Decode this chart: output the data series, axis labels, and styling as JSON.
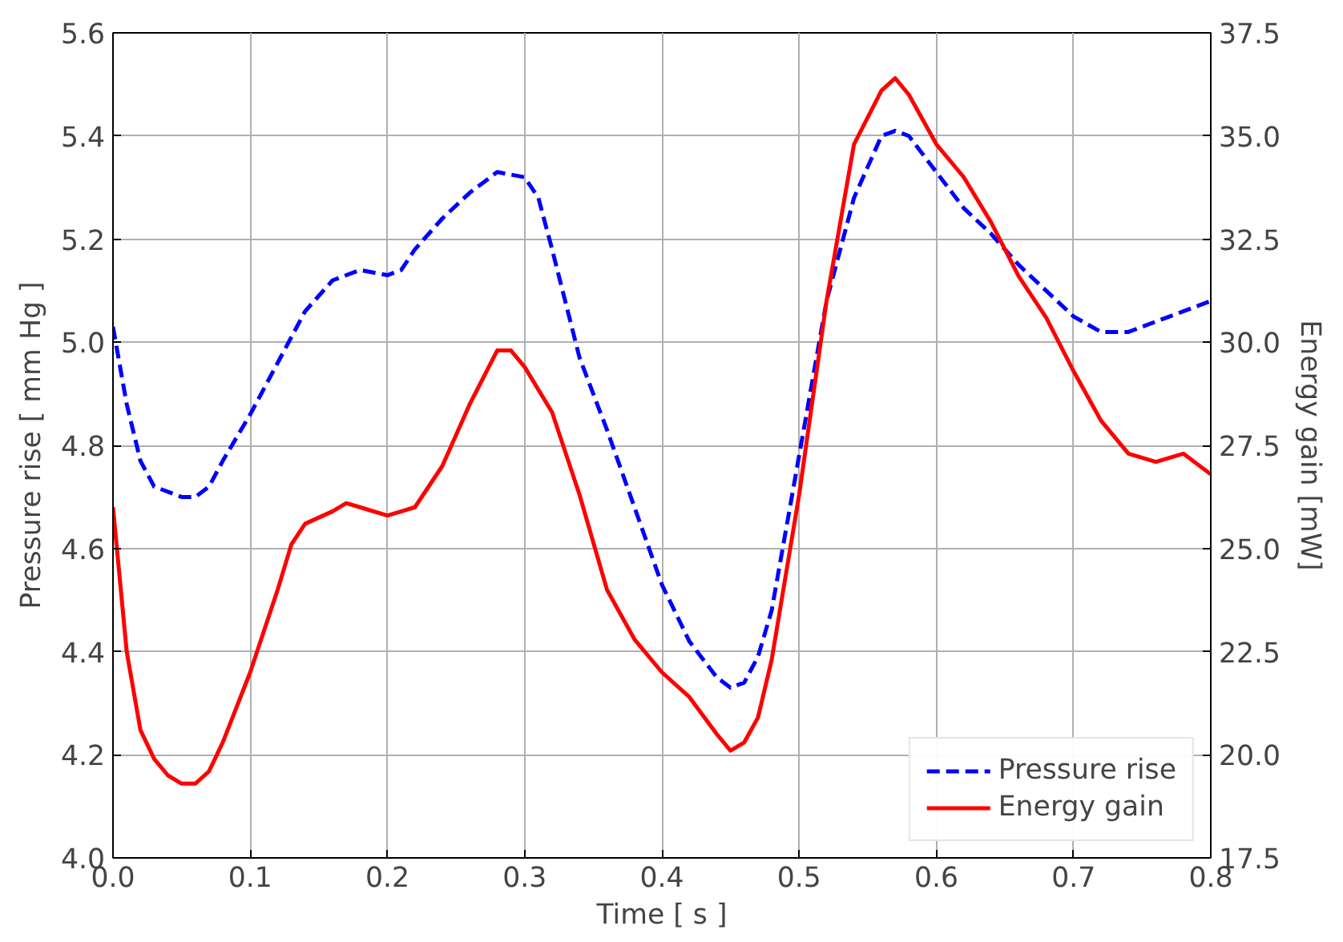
{
  "chart_data": {
    "type": "line",
    "xlabel": "Time [ s ]",
    "ylabel": "Pressure rise [ mm Hg ]",
    "y2label": "Energy gain [mW]",
    "xlim": [
      0,
      0.8
    ],
    "ylim": [
      4.0,
      5.6
    ],
    "y2lim": [
      17.5,
      37.5
    ],
    "xticks": [
      {
        "value": 0,
        "label": "0.0"
      },
      0.1,
      0.2,
      0.3,
      0.4,
      0.5,
      0.6,
      0.7,
      0.8
    ],
    "yticks": [
      {
        "value": 4,
        "label": "4.0"
      },
      4.2,
      4.4,
      4.6,
      4.8,
      {
        "value": 5,
        "label": "5.0"
      },
      5.2,
      5.4,
      5.6
    ],
    "y2ticks": [
      17.5,
      {
        "value": 20,
        "label": "20.0"
      },
      22.5,
      {
        "value": 25,
        "label": "25.0"
      },
      27.5,
      {
        "value": 30,
        "label": "30.0"
      },
      32.5,
      {
        "value": 35,
        "label": "35.0"
      },
      37.5
    ],
    "grid": true,
    "legend": "bottom right",
    "series": [
      {
        "name": "Pressure rise",
        "color": "#0000ff",
        "line_style": "dashed",
        "x": [
          0,
          0.01,
          0.02,
          0.03,
          0.05,
          0.06,
          0.07,
          0.08,
          0.1,
          0.12,
          0.14,
          0.16,
          0.18,
          0.2,
          0.21,
          0.22,
          0.24,
          0.26,
          0.28,
          0.3,
          0.31,
          0.32,
          0.34,
          0.36,
          0.38,
          0.4,
          0.42,
          0.44,
          0.45,
          0.46,
          0.47,
          0.48,
          0.5,
          0.52,
          0.54,
          0.56,
          0.57,
          0.58,
          0.6,
          0.62,
          0.64,
          0.66,
          0.68,
          0.7,
          0.72,
          0.74,
          0.76,
          0.78,
          0.8
        ],
        "values": [
          5.03,
          4.88,
          4.77,
          4.72,
          4.7,
          4.7,
          4.72,
          4.77,
          4.86,
          4.96,
          5.06,
          5.12,
          5.14,
          5.13,
          5.14,
          5.18,
          5.24,
          5.29,
          5.33,
          5.32,
          5.28,
          5.18,
          4.97,
          4.83,
          4.68,
          4.53,
          4.42,
          4.35,
          4.33,
          4.34,
          4.39,
          4.48,
          4.78,
          5.08,
          5.28,
          5.4,
          5.41,
          5.4,
          5.33,
          5.26,
          5.21,
          5.15,
          5.1,
          5.05,
          5.02,
          5.02,
          5.04,
          5.06,
          5.08
        ]
      },
      {
        "name": "Energy gain",
        "color": "#ff0000",
        "line_style": "solid",
        "axis": "y2",
        "x": [
          0,
          0.01,
          0.02,
          0.03,
          0.04,
          0.05,
          0.06,
          0.07,
          0.08,
          0.1,
          0.12,
          0.13,
          0.14,
          0.16,
          0.17,
          0.18,
          0.2,
          0.22,
          0.24,
          0.26,
          0.28,
          0.29,
          0.3,
          0.32,
          0.34,
          0.36,
          0.38,
          0.4,
          0.42,
          0.44,
          0.45,
          0.46,
          0.47,
          0.48,
          0.5,
          0.52,
          0.54,
          0.56,
          0.57,
          0.58,
          0.6,
          0.62,
          0.64,
          0.66,
          0.68,
          0.7,
          0.72,
          0.74,
          0.76,
          0.78,
          0.8
        ],
        "values": [
          26.0,
          22.5,
          20.6,
          19.9,
          19.5,
          19.3,
          19.3,
          19.6,
          20.3,
          22.0,
          24.0,
          25.1,
          25.6,
          25.9,
          26.1,
          26.0,
          25.8,
          26.0,
          27.0,
          28.5,
          29.8,
          29.8,
          29.4,
          28.3,
          26.3,
          24.0,
          22.8,
          22.0,
          21.4,
          20.5,
          20.1,
          20.3,
          20.9,
          22.3,
          26.3,
          31.0,
          34.8,
          36.1,
          36.4,
          36.0,
          34.8,
          34.0,
          32.9,
          31.6,
          30.6,
          29.3,
          28.1,
          27.3,
          27.1,
          27.3,
          26.8
        ]
      }
    ]
  }
}
